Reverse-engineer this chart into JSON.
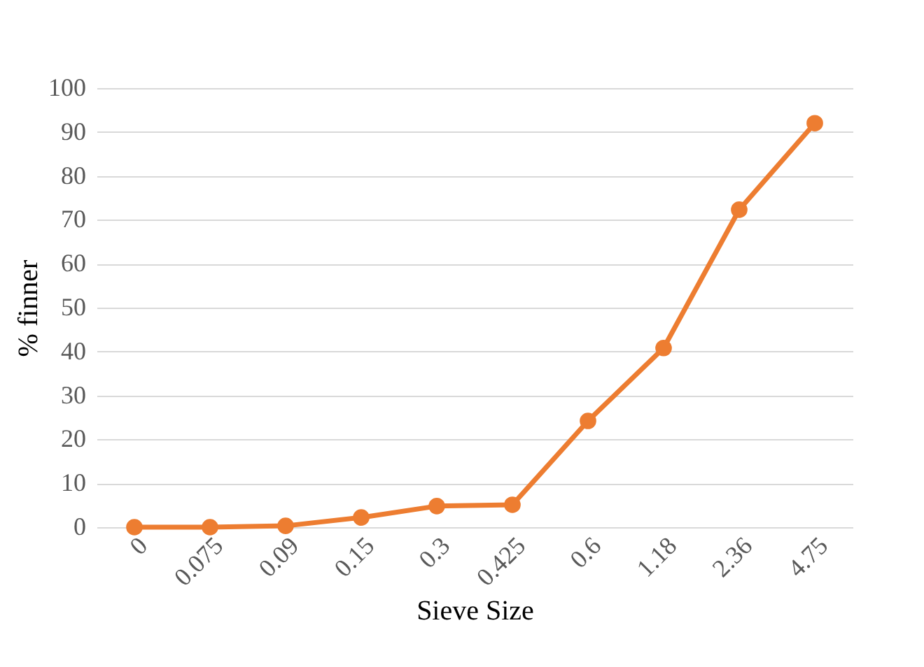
{
  "chart_data": {
    "type": "line",
    "xlabel": "Sieve Size",
    "ylabel": "% finner",
    "categories": [
      "0",
      "0.075",
      "0.09",
      "0.15",
      "0.3",
      "0.425",
      "0.6",
      "1.18",
      "2.36",
      "4.75"
    ],
    "series": [
      {
        "color": "#ed7d31",
        "values": [
          0,
          0,
          0.3,
          2.2,
          4.8,
          5.1,
          24.2,
          40.8,
          72.3,
          92
        ]
      }
    ],
    "ylim": [
      0,
      100
    ],
    "yticks": [
      0,
      10,
      20,
      30,
      40,
      50,
      60,
      70,
      80,
      90,
      100
    ],
    "grid": "y",
    "marker": "circle",
    "line_style": "solid"
  }
}
